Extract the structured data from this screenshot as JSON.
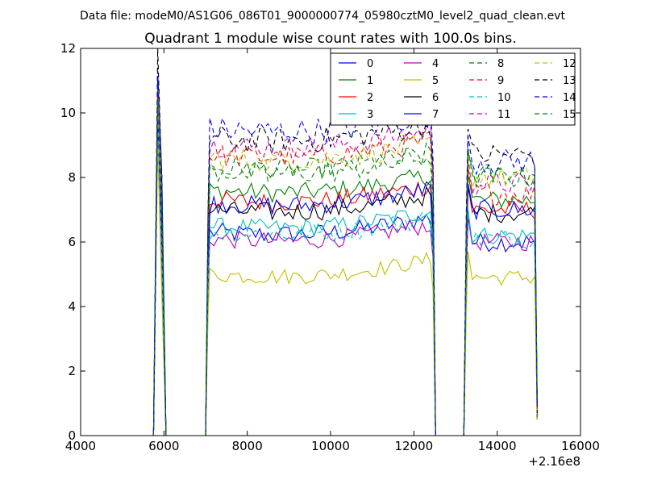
{
  "chart_data": {
    "type": "line",
    "header": "Data file: modeM0/AS1G06_086T01_9000000774_05980cztM0_level2_quad_clean.evt",
    "title": "Quadrant 1 module wise count rates with 100.0s bins.",
    "xlabel": "",
    "ylabel": "",
    "x_offset_label": "+2.16e8",
    "xlim": [
      4000,
      16000
    ],
    "ylim": [
      0,
      12
    ],
    "x_ticks": [
      "4000",
      "6000",
      "8000",
      "10000",
      "12000",
      "14000",
      "16000"
    ],
    "y_ticks": [
      "0",
      "2",
      "4",
      "6",
      "8",
      "10",
      "12"
    ],
    "grid": false,
    "legend_position": "top-right",
    "segments": [
      {
        "start": 7100,
        "end": 12400,
        "count": 54
      },
      {
        "start": 13300,
        "end": 14900,
        "count": 17
      }
    ],
    "series": [
      {
        "name": "0",
        "color": "#0000ff",
        "dash": "solid",
        "spike": 11.1,
        "level": [
          6.3,
          6.0
        ],
        "amp": 0.3
      },
      {
        "name": "1",
        "color": "#008000",
        "dash": "solid",
        "spike": 10.8,
        "level": [
          7.6,
          7.3
        ],
        "amp": 0.3
      },
      {
        "name": "2",
        "color": "#ff0000",
        "dash": "solid",
        "spike": 10.5,
        "level": [
          7.3,
          7.0
        ],
        "amp": 0.3
      },
      {
        "name": "3",
        "color": "#00bfbf",
        "dash": "solid",
        "spike": 10.0,
        "level": [
          6.5,
          6.2
        ],
        "amp": 0.28
      },
      {
        "name": "4",
        "color": "#bf00bf",
        "dash": "solid",
        "spike": 10.1,
        "level": [
          6.1,
          6.0
        ],
        "amp": 0.28
      },
      {
        "name": "5",
        "color": "#bfbf00",
        "dash": "solid",
        "spike": 9.0,
        "level": [
          5.0,
          4.9
        ],
        "amp": 0.25
      },
      {
        "name": "6",
        "color": "#000000",
        "dash": "solid",
        "spike": 10.3,
        "level": [
          7.0,
          6.9
        ],
        "amp": 0.3
      },
      {
        "name": "7",
        "color": "#0000ff",
        "dash": "solid",
        "spike": 10.0,
        "level": [
          7.2,
          7.0
        ],
        "amp": 0.3
      },
      {
        "name": "8",
        "color": "#008000",
        "dash": "dashed",
        "spike": 10.9,
        "level": [
          8.3,
          8.1
        ],
        "amp": 0.35
      },
      {
        "name": "9",
        "color": "#ff0000",
        "dash": "dashed",
        "spike": 10.6,
        "level": [
          8.7,
          7.5
        ],
        "amp": 0.35
      },
      {
        "name": "10",
        "color": "#00bfbf",
        "dash": "dashed",
        "spike": 10.2,
        "level": [
          6.3,
          6.1
        ],
        "amp": 0.3
      },
      {
        "name": "11",
        "color": "#bf00bf",
        "dash": "dashed",
        "spike": 10.4,
        "level": [
          9.0,
          7.8
        ],
        "amp": 0.35
      },
      {
        "name": "12",
        "color": "#bfbf00",
        "dash": "dashed",
        "spike": 10.3,
        "level": [
          8.6,
          8.0
        ],
        "amp": 0.35
      },
      {
        "name": "13",
        "color": "#000000",
        "dash": "dashed",
        "spike": 12.0,
        "level": [
          9.2,
          8.7
        ],
        "amp": 0.4
      },
      {
        "name": "14",
        "color": "#0000ff",
        "dash": "dashed",
        "spike": 11.3,
        "level": [
          9.5,
          8.5
        ],
        "amp": 0.4
      },
      {
        "name": "15",
        "color": "#008000",
        "dash": "dashed",
        "spike": 10.4,
        "level": [
          8.2,
          8.0
        ],
        "amp": 0.35
      }
    ]
  }
}
